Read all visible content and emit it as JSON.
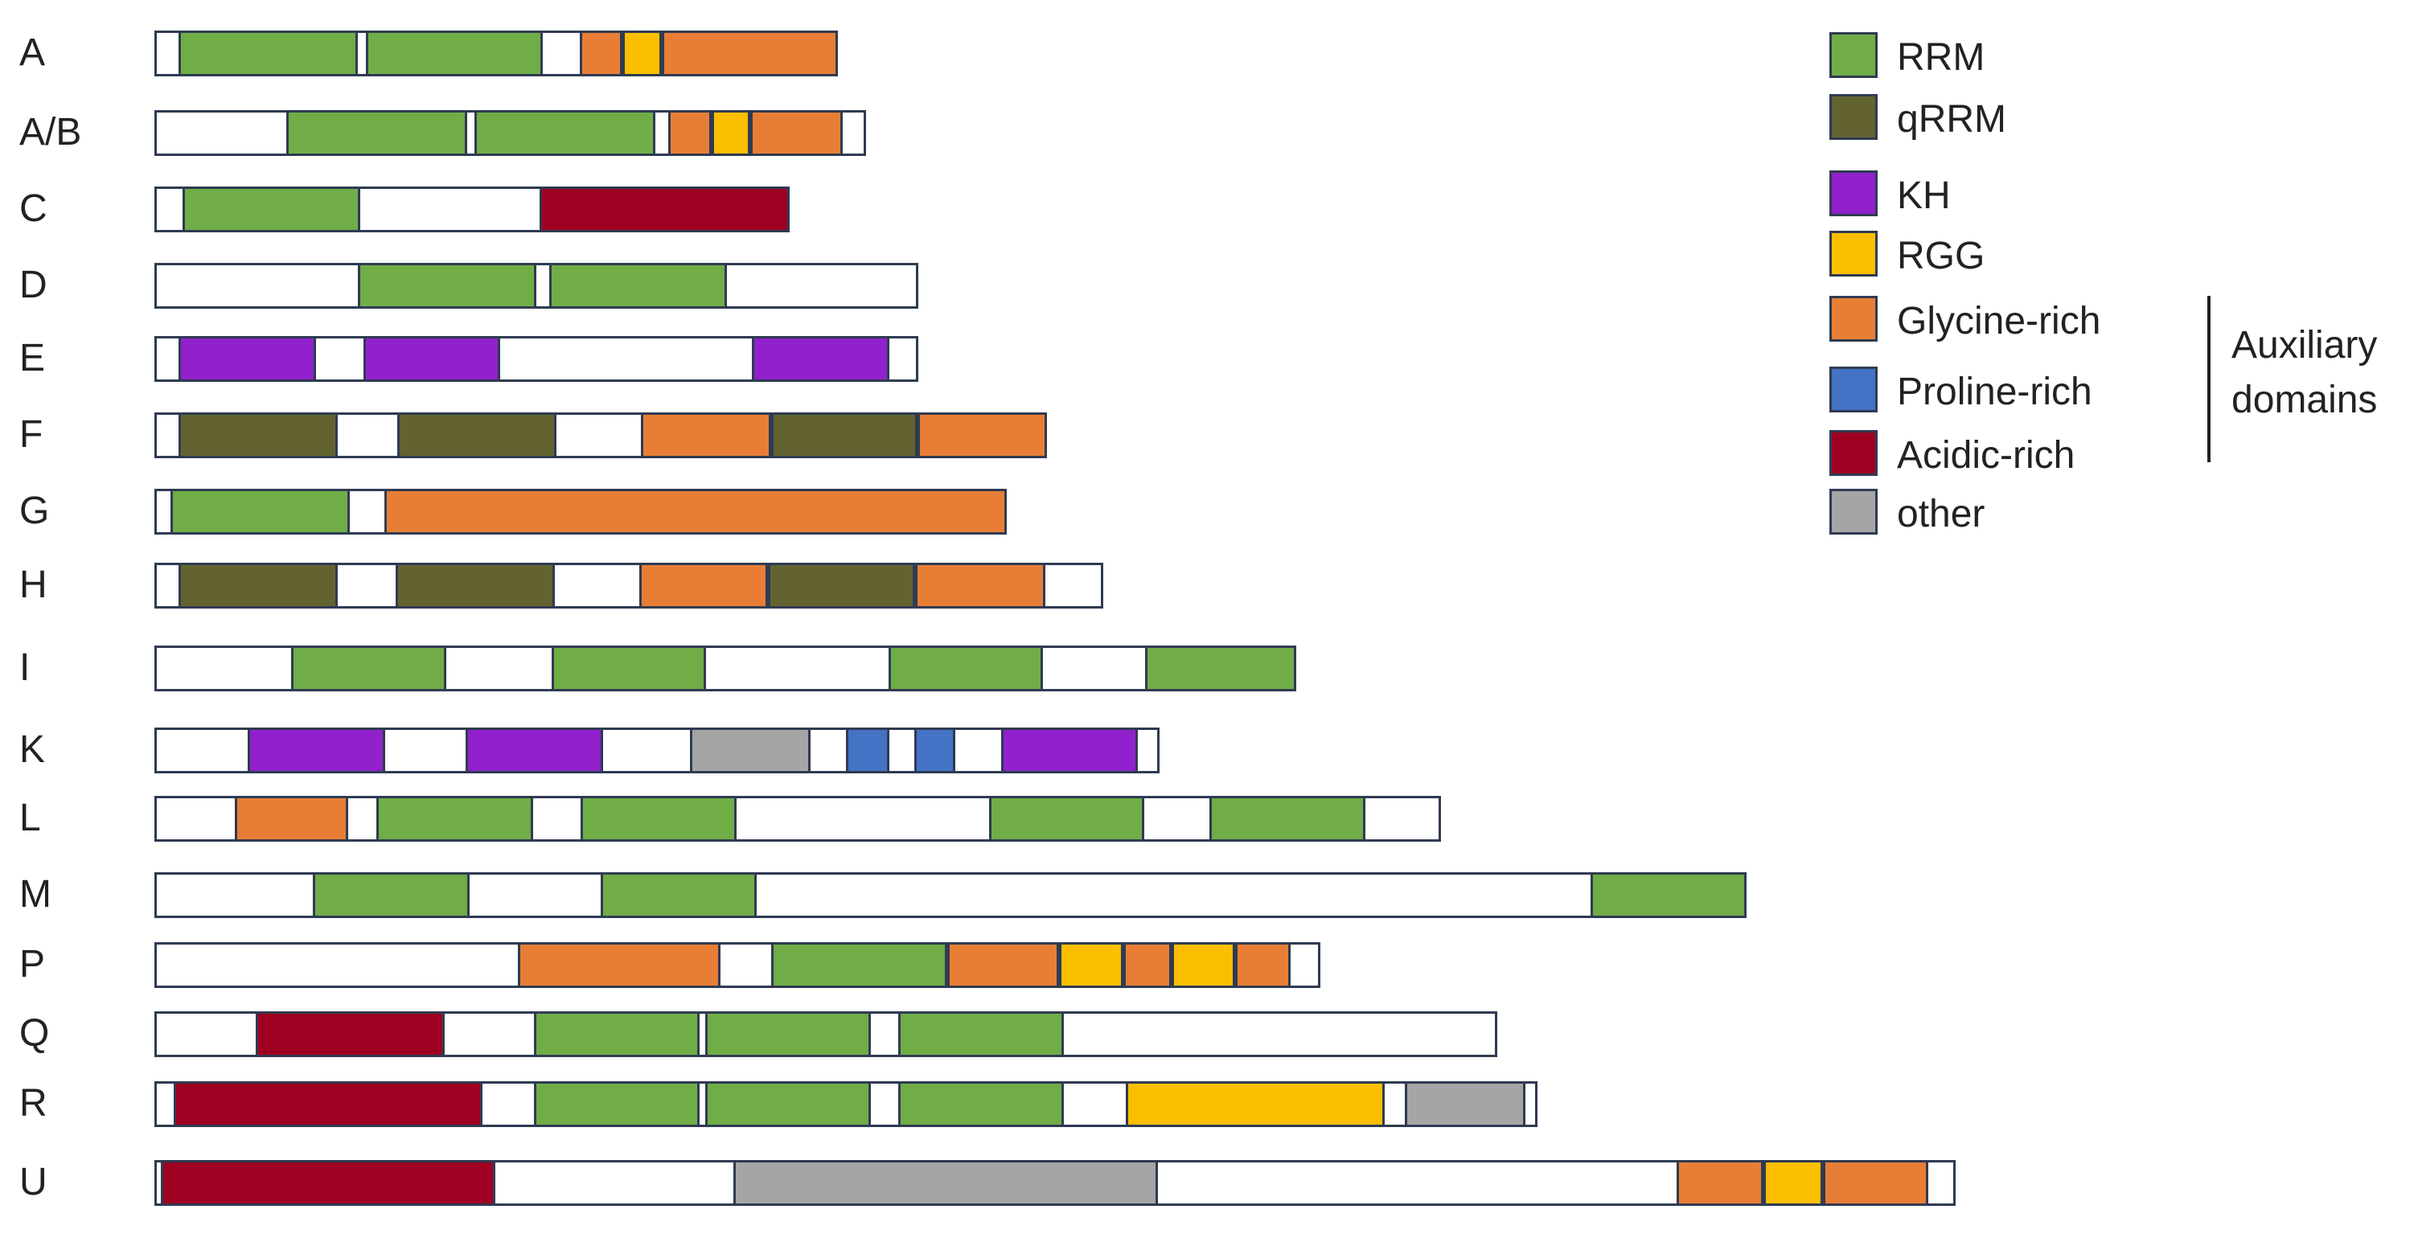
{
  "colors": {
    "RRM": "#70ad47",
    "qRRM": "#636331",
    "KH": "#9121cc",
    "RGG": "#fbbf00",
    "Gly": "#e87e35",
    "Pro": "#4473c5",
    "Acid": "#9f0021",
    "other": "#a5a5a5",
    "none": "#ffffff"
  },
  "legend": [
    {
      "label": "RRM",
      "color": "#70ad47"
    },
    {
      "label": "qRRM",
      "color": "#636331"
    },
    {
      "label": "KH",
      "color": "#9121cc"
    },
    {
      "label": "RGG",
      "color": "#fbbf00"
    },
    {
      "label": "Glycine-rich",
      "color": "#e87e35"
    },
    {
      "label": "Proline-rich",
      "color": "#4473c5"
    },
    {
      "label": "Acidic-rich",
      "color": "#9f0021"
    },
    {
      "label": "other",
      "color": "#a5a5a5"
    }
  ],
  "auxiliary": {
    "line1": "Auxiliary",
    "line2": "domains"
  },
  "proteins": [
    {
      "name": "A",
      "length": 850,
      "domains": [
        {
          "t": "RRM",
          "s": 30,
          "e": 253
        },
        {
          "t": "RRM",
          "s": 263,
          "e": 483
        },
        {
          "t": "Gly",
          "s": 529,
          "e": 582
        },
        {
          "t": "RGG",
          "s": 582,
          "e": 631
        },
        {
          "t": "Gly",
          "s": 631,
          "e": 850
        }
      ]
    },
    {
      "name": "A/B",
      "length": 885,
      "domains": [
        {
          "t": "RRM",
          "s": 164,
          "e": 389
        },
        {
          "t": "RRM",
          "s": 398,
          "e": 623
        },
        {
          "t": "Gly",
          "s": 639,
          "e": 693
        },
        {
          "t": "RGG",
          "s": 693,
          "e": 741
        },
        {
          "t": "Gly",
          "s": 741,
          "e": 856
        }
      ]
    },
    {
      "name": "C",
      "length": 790,
      "domains": [
        {
          "t": "RRM",
          "s": 35,
          "e": 256
        },
        {
          "t": "Acid",
          "s": 479,
          "e": 790
        }
      ]
    },
    {
      "name": "D",
      "length": 950,
      "domains": [
        {
          "t": "RRM",
          "s": 253,
          "e": 475
        },
        {
          "t": "RRM",
          "s": 491,
          "e": 712
        }
      ]
    },
    {
      "name": "E",
      "length": 950,
      "domains": [
        {
          "t": "KH",
          "s": 30,
          "e": 201
        },
        {
          "t": "KH",
          "s": 260,
          "e": 430
        },
        {
          "t": "KH",
          "s": 743,
          "e": 914
        }
      ]
    },
    {
      "name": "F",
      "length": 1110,
      "domains": [
        {
          "t": "qRRM",
          "s": 30,
          "e": 228
        },
        {
          "t": "qRRM",
          "s": 302,
          "e": 500
        },
        {
          "t": "Gly",
          "s": 605,
          "e": 767
        },
        {
          "t": "qRRM",
          "s": 767,
          "e": 949
        },
        {
          "t": "Gly",
          "s": 949,
          "e": 1110
        }
      ]
    },
    {
      "name": "G",
      "length": 1060,
      "domains": [
        {
          "t": "RRM",
          "s": 20,
          "e": 243
        },
        {
          "t": "Gly",
          "s": 286,
          "e": 1060
        }
      ]
    },
    {
      "name": "H",
      "length": 1180,
      "domains": [
        {
          "t": "qRRM",
          "s": 30,
          "e": 228
        },
        {
          "t": "qRRM",
          "s": 300,
          "e": 498
        },
        {
          "t": "Gly",
          "s": 603,
          "e": 763
        },
        {
          "t": "qRRM",
          "s": 763,
          "e": 946
        },
        {
          "t": "Gly",
          "s": 946,
          "e": 1108
        }
      ]
    },
    {
      "name": "I",
      "length": 1420,
      "domains": [
        {
          "t": "RRM",
          "s": 170,
          "e": 363
        },
        {
          "t": "RRM",
          "s": 494,
          "e": 686
        },
        {
          "t": "RRM",
          "s": 913,
          "e": 1105
        },
        {
          "t": "RRM",
          "s": 1232,
          "e": 1420
        }
      ]
    },
    {
      "name": "K",
      "length": 1250,
      "domains": [
        {
          "t": "KH",
          "s": 116,
          "e": 287
        },
        {
          "t": "KH",
          "s": 387,
          "e": 558
        },
        {
          "t": "other",
          "s": 666,
          "e": 816
        },
        {
          "t": "Pro",
          "s": 860,
          "e": 914
        },
        {
          "t": "Pro",
          "s": 945,
          "e": 996
        },
        {
          "t": "KH",
          "s": 1053,
          "e": 1223
        }
      ]
    },
    {
      "name": "L",
      "length": 1600,
      "domains": [
        {
          "t": "Gly",
          "s": 100,
          "e": 241
        },
        {
          "t": "RRM",
          "s": 276,
          "e": 471
        },
        {
          "t": "RRM",
          "s": 530,
          "e": 724
        },
        {
          "t": "RRM",
          "s": 1038,
          "e": 1231
        },
        {
          "t": "RRM",
          "s": 1312,
          "e": 1506
        }
      ]
    },
    {
      "name": "M",
      "length": 1980,
      "domains": [
        {
          "t": "RRM",
          "s": 197,
          "e": 392
        },
        {
          "t": "RRM",
          "s": 555,
          "e": 749
        },
        {
          "t": "RRM",
          "s": 1786,
          "e": 1980
        }
      ]
    },
    {
      "name": "P",
      "length": 1450,
      "domains": [
        {
          "t": "Gly",
          "s": 452,
          "e": 704
        },
        {
          "t": "RRM",
          "s": 767,
          "e": 986
        },
        {
          "t": "Gly",
          "s": 986,
          "e": 1125
        },
        {
          "t": "RGG",
          "s": 1125,
          "e": 1205
        },
        {
          "t": "Gly",
          "s": 1205,
          "e": 1265
        },
        {
          "t": "RGG",
          "s": 1265,
          "e": 1344
        },
        {
          "t": "Gly",
          "s": 1344,
          "e": 1413
        }
      ]
    },
    {
      "name": "Q",
      "length": 1670,
      "domains": [
        {
          "t": "Acid",
          "s": 126,
          "e": 361
        },
        {
          "t": "RRM",
          "s": 472,
          "e": 678
        },
        {
          "t": "RRM",
          "s": 685,
          "e": 891
        },
        {
          "t": "RRM",
          "s": 925,
          "e": 1131
        }
      ]
    },
    {
      "name": "R",
      "length": 1720,
      "domains": [
        {
          "t": "Acid",
          "s": 24,
          "e": 408
        },
        {
          "t": "RRM",
          "s": 472,
          "e": 678
        },
        {
          "t": "RRM",
          "s": 685,
          "e": 891
        },
        {
          "t": "RRM",
          "s": 925,
          "e": 1131
        },
        {
          "t": "RGG",
          "s": 1208,
          "e": 1530
        },
        {
          "t": "other",
          "s": 1555,
          "e": 1705
        }
      ]
    },
    {
      "name": "U",
      "length": 2240,
      "domains": [
        {
          "t": "Acid",
          "s": 8,
          "e": 424
        },
        {
          "t": "other",
          "s": 720,
          "e": 1248
        },
        {
          "t": "Gly",
          "s": 1893,
          "e": 2001
        },
        {
          "t": "RGG",
          "s": 2001,
          "e": 2075
        },
        {
          "t": "Gly",
          "s": 2075,
          "e": 2206
        }
      ]
    }
  ]
}
